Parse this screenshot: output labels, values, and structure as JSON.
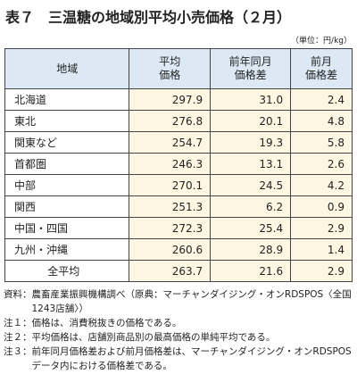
{
  "header": {
    "title": "表７　三温糖の地域別平均小売価格（２月）",
    "unit": "（単位：円/kg）"
  },
  "table": {
    "columns": [
      "地域",
      "平均\n価格",
      "前年同月\n価格差",
      "前月\n価格差"
    ],
    "rows": [
      [
        "北海道",
        "297.9",
        "31.0",
        "2.4"
      ],
      [
        "東北",
        "276.8",
        "20.1",
        "4.8"
      ],
      [
        "関東など",
        "254.7",
        "19.3",
        "5.8"
      ],
      [
        "首都圏",
        "246.3",
        "13.1",
        "2.6"
      ],
      [
        "中部",
        "270.1",
        "24.5",
        "4.2"
      ],
      [
        "関西",
        "251.3",
        "6.2",
        "0.9"
      ],
      [
        "中国・四国",
        "272.3",
        "25.4",
        "2.9"
      ],
      [
        "九州・沖縄",
        "260.6",
        "28.9",
        "1.4"
      ],
      [
        "全平均",
        "263.7",
        "21.6",
        "2.9"
      ]
    ]
  },
  "notes": [
    {
      "label": "資料：",
      "text": "農畜産業振興機構調べ（原典：マーチャンダイジング・オンRDSPOS〈全国1243店舗〉）"
    },
    {
      "label": "注１：",
      "text": "価格は、消費税抜きの価格である。"
    },
    {
      "label": "注２：",
      "text": "平均価格は、店舗別商品別の最高価格の単純平均である。"
    },
    {
      "label": "注３：",
      "text": "前年同月価格差および前月価格差は、マーチャンダイジング・オンRDSPOSデータ内における価格差である。"
    }
  ]
}
